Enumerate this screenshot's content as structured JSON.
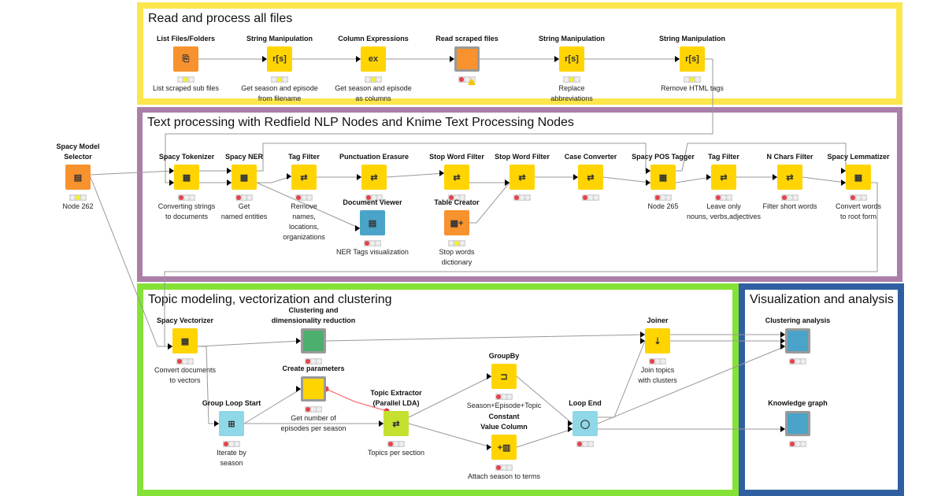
{
  "annotations": [
    {
      "id": "read",
      "title": "Read and process all files",
      "color": "#fbe64d"
    },
    {
      "id": "text",
      "title": "Text processing with Redfield NLP Nodes and Knime Text Processing Nodes",
      "color": "#ab7fa9"
    },
    {
      "id": "topic",
      "title": "Topic modeling, vectorization and clustering",
      "color": "#84e236"
    },
    {
      "id": "viz",
      "title": "Visualization and analysis",
      "color": "#2f5fa0"
    }
  ],
  "nodes": [
    {
      "id": "list_files",
      "title": "List Files/Folders",
      "desc": "List scraped sub files",
      "glyph": "⎘",
      "color": "#f7922e",
      "lights": [
        "off",
        "yellow",
        "off"
      ]
    },
    {
      "id": "str1",
      "title": "String Manipulation",
      "desc": "Get season and episode\nfrom filename",
      "glyph": "r[s]",
      "color": "#ffd400",
      "lights": [
        "off",
        "yellow",
        "off"
      ]
    },
    {
      "id": "colexpr",
      "title": "Column Expressions",
      "desc": "Get season and episode\nas columns",
      "glyph": "ex",
      "color": "#ffd400",
      "lights": [
        "off",
        "yellow",
        "off"
      ]
    },
    {
      "id": "read_scraped",
      "title": "Read scraped files",
      "desc": "",
      "glyph": "",
      "color": "#f7922e",
      "framed": true,
      "warning": true,
      "lights": [
        "red",
        "off",
        "off"
      ]
    },
    {
      "id": "str2",
      "title": "String Manipulation",
      "desc": "Replace\nabbreviations",
      "glyph": "r[s]",
      "color": "#ffd400",
      "lights": [
        "off",
        "yellow",
        "off"
      ]
    },
    {
      "id": "str3",
      "title": "String Manipulation",
      "desc": "Remove HTML tags",
      "glyph": "r[s]",
      "color": "#ffd400",
      "lights": [
        "off",
        "yellow",
        "off"
      ]
    },
    {
      "id": "model_sel",
      "title": "Spacy Model\nSelector",
      "desc": "Node 262",
      "glyph": "▤",
      "color": "#f7922e",
      "lights": [
        "off",
        "yellow",
        "off"
      ]
    },
    {
      "id": "tokenizer",
      "title": "Spacy Tokenizer",
      "desc": "Converting strings\nto documents",
      "glyph": "▦",
      "color": "#ffd400",
      "lights": [
        "red",
        "off",
        "off"
      ]
    },
    {
      "id": "ner",
      "title": "Spacy NER",
      "desc": "Get\nnamed entities",
      "glyph": "▦",
      "color": "#ffd400",
      "lights": [
        "red",
        "off",
        "off"
      ]
    },
    {
      "id": "tagf1",
      "title": "Tag Filter",
      "desc": "Remove\nnames,\nlocations,\norganizations",
      "glyph": "⇄",
      "color": "#ffd400",
      "lights": [
        "red",
        "off",
        "off"
      ]
    },
    {
      "id": "punct",
      "title": "Punctuation Erasure",
      "desc": "",
      "glyph": "⇄",
      "color": "#ffd400",
      "lights": [
        "red",
        "off",
        "off"
      ]
    },
    {
      "id": "docview",
      "title": "Document Viewer",
      "desc": "NER Tags visualization",
      "glyph": "▤",
      "color": "#4aa3c8",
      "lights": [
        "red",
        "off",
        "off"
      ]
    },
    {
      "id": "stop1",
      "title": "Stop Word Filter",
      "desc": "",
      "glyph": "⇄",
      "color": "#ffd400",
      "lights": [
        "red",
        "off",
        "off"
      ]
    },
    {
      "id": "tablecreator",
      "title": "Table Creator",
      "desc": "Stop words\ndictionary",
      "glyph": "▦+",
      "color": "#f7922e",
      "lights": [
        "off",
        "yellow",
        "off"
      ]
    },
    {
      "id": "stop2",
      "title": "Stop Word Filter",
      "desc": "",
      "glyph": "⇄",
      "color": "#ffd400",
      "lights": [
        "red",
        "off",
        "off"
      ]
    },
    {
      "id": "case",
      "title": "Case Converter",
      "desc": "",
      "glyph": "⇄",
      "color": "#ffd400",
      "lights": [
        "red",
        "off",
        "off"
      ]
    },
    {
      "id": "pos",
      "title": "Spacy POS Tagger",
      "desc": "Node 265",
      "glyph": "▦",
      "color": "#ffd400",
      "lights": [
        "red",
        "off",
        "off"
      ]
    },
    {
      "id": "tagf2",
      "title": "Tag Filter",
      "desc": "Leave only\nnouns, verbs,adjectives",
      "glyph": "⇄",
      "color": "#ffd400",
      "lights": [
        "red",
        "off",
        "off"
      ]
    },
    {
      "id": "nchars",
      "title": "N Chars Filter",
      "desc": "Filter short words",
      "glyph": "⇄",
      "color": "#ffd400",
      "lights": [
        "red",
        "off",
        "off"
      ]
    },
    {
      "id": "lemm",
      "title": "Spacy Lemmatizer",
      "desc": "Convert    words\nto root form",
      "glyph": "▦",
      "color": "#ffd400",
      "lights": [
        "red",
        "off",
        "off"
      ]
    },
    {
      "id": "vectorizer",
      "title": "Spacy Vectorizer",
      "desc": "Convert documents\nto vectors",
      "glyph": "▦",
      "color": "#ffd400",
      "lights": [
        "red",
        "off",
        "off"
      ]
    },
    {
      "id": "clustering",
      "title": "Clustering and\ndimensionality reduction",
      "desc": "",
      "glyph": "",
      "color": "#4caf6e",
      "framed": true,
      "lights": [
        "red",
        "off",
        "off"
      ]
    },
    {
      "id": "createparams",
      "title": "Create parameters",
      "desc": "Get number of\nepisodes per season",
      "glyph": "",
      "color": "#ffd400",
      "framed": true,
      "lights": [
        "red",
        "off",
        "off"
      ]
    },
    {
      "id": "grouploop",
      "title": "Group Loop Start",
      "desc": "Iterate by\nseason",
      "glyph": "⊞",
      "color": "#8fd8e8",
      "lights": [
        "red",
        "off",
        "off"
      ]
    },
    {
      "id": "topicextr",
      "title": "Topic Extractor\n(Parallel LDA)",
      "desc": "Topics per section",
      "glyph": "⇄",
      "color": "#c6e030",
      "lights": [
        "red",
        "off",
        "off"
      ]
    },
    {
      "id": "groupby",
      "title": "GroupBy",
      "desc": "Season+Episode+Topic",
      "glyph": "⊐",
      "color": "#ffd400",
      "lights": [
        "red",
        "off",
        "off"
      ]
    },
    {
      "id": "constval",
      "title": "Constant\nValue Column",
      "desc": "Attach season to terms",
      "glyph": "+▥",
      "color": "#ffd400",
      "lights": [
        "red",
        "off",
        "off"
      ]
    },
    {
      "id": "loopend",
      "title": "Loop End",
      "desc": "",
      "glyph": "◯",
      "color": "#8fd8e8",
      "lights": [
        "red",
        "off",
        "off"
      ]
    },
    {
      "id": "joiner",
      "title": "Joiner",
      "desc": "Join topics\nwith clusters",
      "glyph": "⇣",
      "color": "#ffd400",
      "lights": [
        "red",
        "off",
        "off"
      ]
    },
    {
      "id": "clusteranalysis",
      "title": "Clustering analysis",
      "desc": "",
      "glyph": "",
      "color": "#4aa3c8",
      "framed": true,
      "lights": [
        "red",
        "off",
        "off"
      ]
    },
    {
      "id": "kg",
      "title": "Knowledge graph",
      "desc": "",
      "glyph": "",
      "color": "#4aa3c8",
      "framed": true,
      "lights": [
        "red",
        "off",
        "off"
      ]
    }
  ]
}
